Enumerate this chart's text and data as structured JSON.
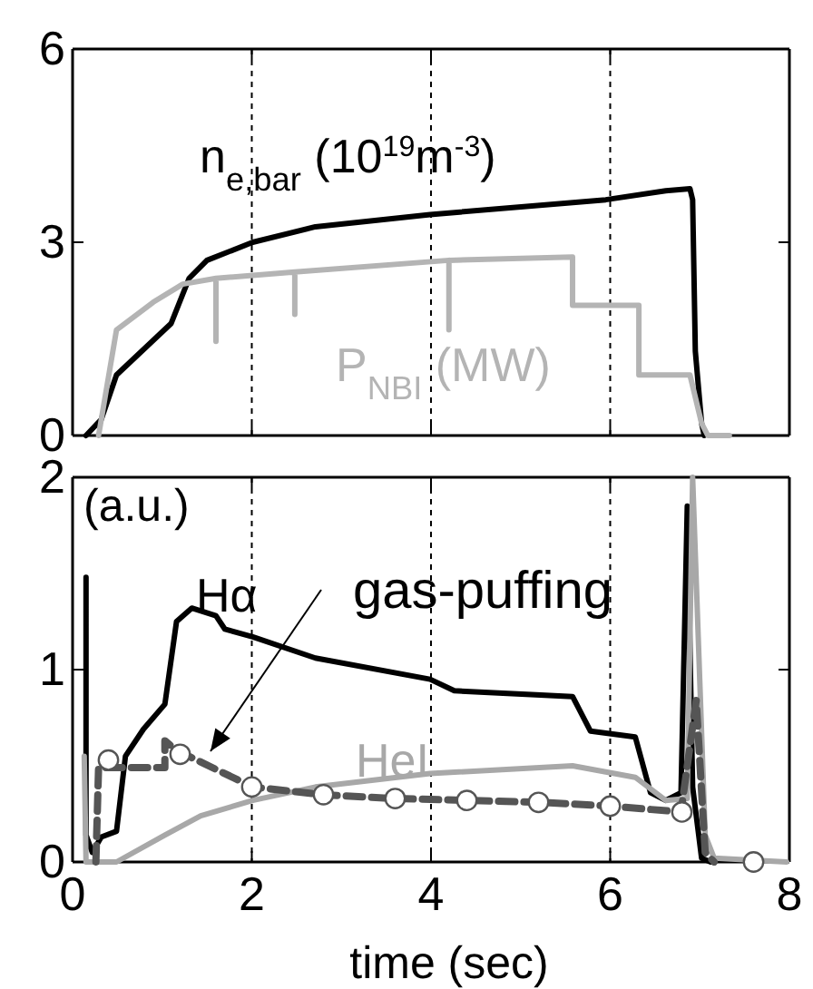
{
  "chart_data": [
    {
      "type": "line",
      "xlim": [
        0,
        8
      ],
      "xticks": [
        0,
        2,
        4,
        6,
        8
      ],
      "ylim": [
        0,
        6
      ],
      "yticks": [
        0,
        3,
        6
      ],
      "grid": "x",
      "tick_labels": "y",
      "series": [
        {
          "name": "n$_{e,bar}$ (10$^{19}$m$^{-3}$)",
          "color": "#000000",
          "x": [
            0.15,
            0.32,
            0.49,
            1.1,
            1.3,
            1.5,
            2.01,
            2.71,
            3.99,
            5.95,
            6.62,
            6.89,
            6.92,
            6.95,
            7.02,
            7.05
          ],
          "values": [
            0,
            0.25,
            0.94,
            1.74,
            2.44,
            2.72,
            3.0,
            3.24,
            3.43,
            3.66,
            3.8,
            3.83,
            3.66,
            1.31,
            0.19,
            0
          ]
        },
        {
          "name": "P$_{NBI}$ (MW)",
          "color": "#b4b4b4",
          "x": [
            0.29,
            0.49,
            0.9,
            1.23,
            1.6,
            1.6,
            1.6,
            2.48,
            2.48,
            2.48,
            4.2,
            4.2,
            4.2,
            5.58,
            5.58,
            6.32,
            6.32,
            6.89,
            7.02,
            7.09,
            7.33
          ],
          "values": [
            0,
            1.64,
            2.07,
            2.35,
            2.44,
            1.46,
            2.44,
            2.54,
            1.88,
            2.54,
            2.72,
            1.64,
            2.72,
            2.77,
            2.02,
            2.02,
            0.94,
            0.94,
            0.19,
            0,
            0
          ]
        }
      ]
    },
    {
      "type": "line",
      "xlim": [
        0,
        8
      ],
      "xticks": [
        0,
        2,
        4,
        6,
        8
      ],
      "ylim": [
        0,
        2
      ],
      "yticks": [
        0,
        1,
        2
      ],
      "grid": "x",
      "xlabel": "time (sec)",
      "annotations": [
        "(a.u.)",
        "gas-puffing"
      ],
      "series": [
        {
          "name": "Hα",
          "color": "#000000",
          "x": [
            0.15,
            0.15,
            0.22,
            0.32,
            0.49,
            0.59,
            0.79,
            1.03,
            1.16,
            1.33,
            1.6,
            1.7,
            2.01,
            2.71,
            3.99,
            4.26,
            5.58,
            5.78,
            6.28,
            6.45,
            6.62,
            6.79,
            6.86,
            6.92,
            7.02,
            7.12
          ],
          "values": [
            1.48,
            0.14,
            0.05,
            0.13,
            0.16,
            0.55,
            0.69,
            0.82,
            1.25,
            1.32,
            1.28,
            1.21,
            1.17,
            1.06,
            0.95,
            0.89,
            0.86,
            0.68,
            0.65,
            0.36,
            0.32,
            0.36,
            1.85,
            0.39,
            0.02,
            0
          ]
        },
        {
          "name": "HeI",
          "color": "#a8a8a8",
          "x": [
            0.13,
            0.15,
            0.49,
            1.03,
            1.43,
            2.01,
            2.71,
            3.99,
            5.58,
            6.28,
            6.62,
            6.86,
            6.92,
            7.06,
            7.16,
            7.97
          ],
          "values": [
            0.55,
            0,
            0,
            0.14,
            0.24,
            0.32,
            0.39,
            0.46,
            0.5,
            0.44,
            0.32,
            0.33,
            2,
            0.14,
            0.02,
            0
          ]
        },
        {
          "color": "#555555",
          "line_style": "dashed",
          "x": [
            0.26,
            0.29,
            1.03,
            1.03,
            1.16,
            2.01,
            2.78,
            3.59,
            4.4,
            5.21,
            6.01,
            6.79,
            6.96,
            7.06,
            7.16
          ],
          "values": [
            0,
            0.49,
            0.49,
            0.63,
            0.58,
            0.39,
            0.35,
            0.33,
            0.32,
            0.31,
            0.29,
            0.26,
            0.84,
            0.05,
            0
          ]
        },
        {
          "type": "scatter",
          "marker": "circle",
          "color": "#555555",
          "x": [
            0.4,
            1.2,
            2.0,
            2.8,
            3.6,
            4.4,
            5.2,
            6.0,
            6.8,
            7.6
          ],
          "values": [
            0.53,
            0.56,
            0.39,
            0.35,
            0.33,
            0.32,
            0.31,
            0.29,
            0.26,
            0
          ]
        }
      ]
    }
  ]
}
